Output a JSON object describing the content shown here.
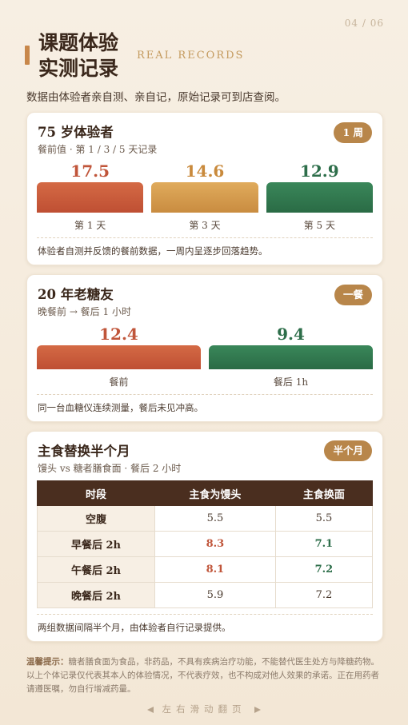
{
  "page_number": "04 / 06",
  "header": {
    "title_line1": "课题体验",
    "title_line2": "实测记录",
    "subtitle_en": "REAL RECORDS",
    "intro": "数据由体验者亲自测、亲自记，原始记录可到店查阅。"
  },
  "cards": [
    {
      "title": "75 岁体验者",
      "badge": "1 周",
      "subtitle": "餐前值 · 第 1 / 3 / 5 天记录",
      "bars": [
        {
          "value": 17.5,
          "label": "第 1 天"
        },
        {
          "value": 14.6,
          "label": "第 3 天"
        },
        {
          "value": 12.9,
          "label": "第 5 天"
        }
      ],
      "note": "体验者自测并反馈的餐前数据，一周内呈逐步回落趋势。"
    },
    {
      "title": "20 年老糖友",
      "badge": "一餐",
      "subtitle": "晚餐前 → 餐后 1 小时",
      "bars": [
        {
          "value": 12.4,
          "label": "餐前"
        },
        {
          "value": 9.4,
          "label": "餐后 1h"
        }
      ],
      "note": "同一台血糖仪连续测量，餐后未见冲高。"
    },
    {
      "title": "主食替换半个月",
      "badge": "半个月",
      "subtitle": "馒头 vs 糖者膳食面 · 餐后 2 小时",
      "table": {
        "columns": [
          "时段",
          "主食为馒头",
          "主食换面"
        ],
        "rows": [
          [
            "空腹",
            5.5,
            5.5
          ],
          [
            "早餐后 2h",
            8.3,
            7.1
          ],
          [
            "午餐后 2h",
            8.1,
            7.2
          ],
          [
            "晚餐后 2h",
            5.9,
            7.2
          ]
        ]
      },
      "note": "两组数据间隔半个月，由体验者自行记录提供。"
    }
  ],
  "disclaimer": {
    "label": "温馨提示：",
    "text": "糖者膳食面为食品，非药品，不具有疾病治疗功能，不能替代医生处方与降糖药物。以上个体记录仅代表其本人的体验情况，不代表疗效，也不构成对他人效果的承诺。正在用药者请遵医嘱，勿自行增减药量。"
  },
  "footer": "左右滑动翻页"
}
